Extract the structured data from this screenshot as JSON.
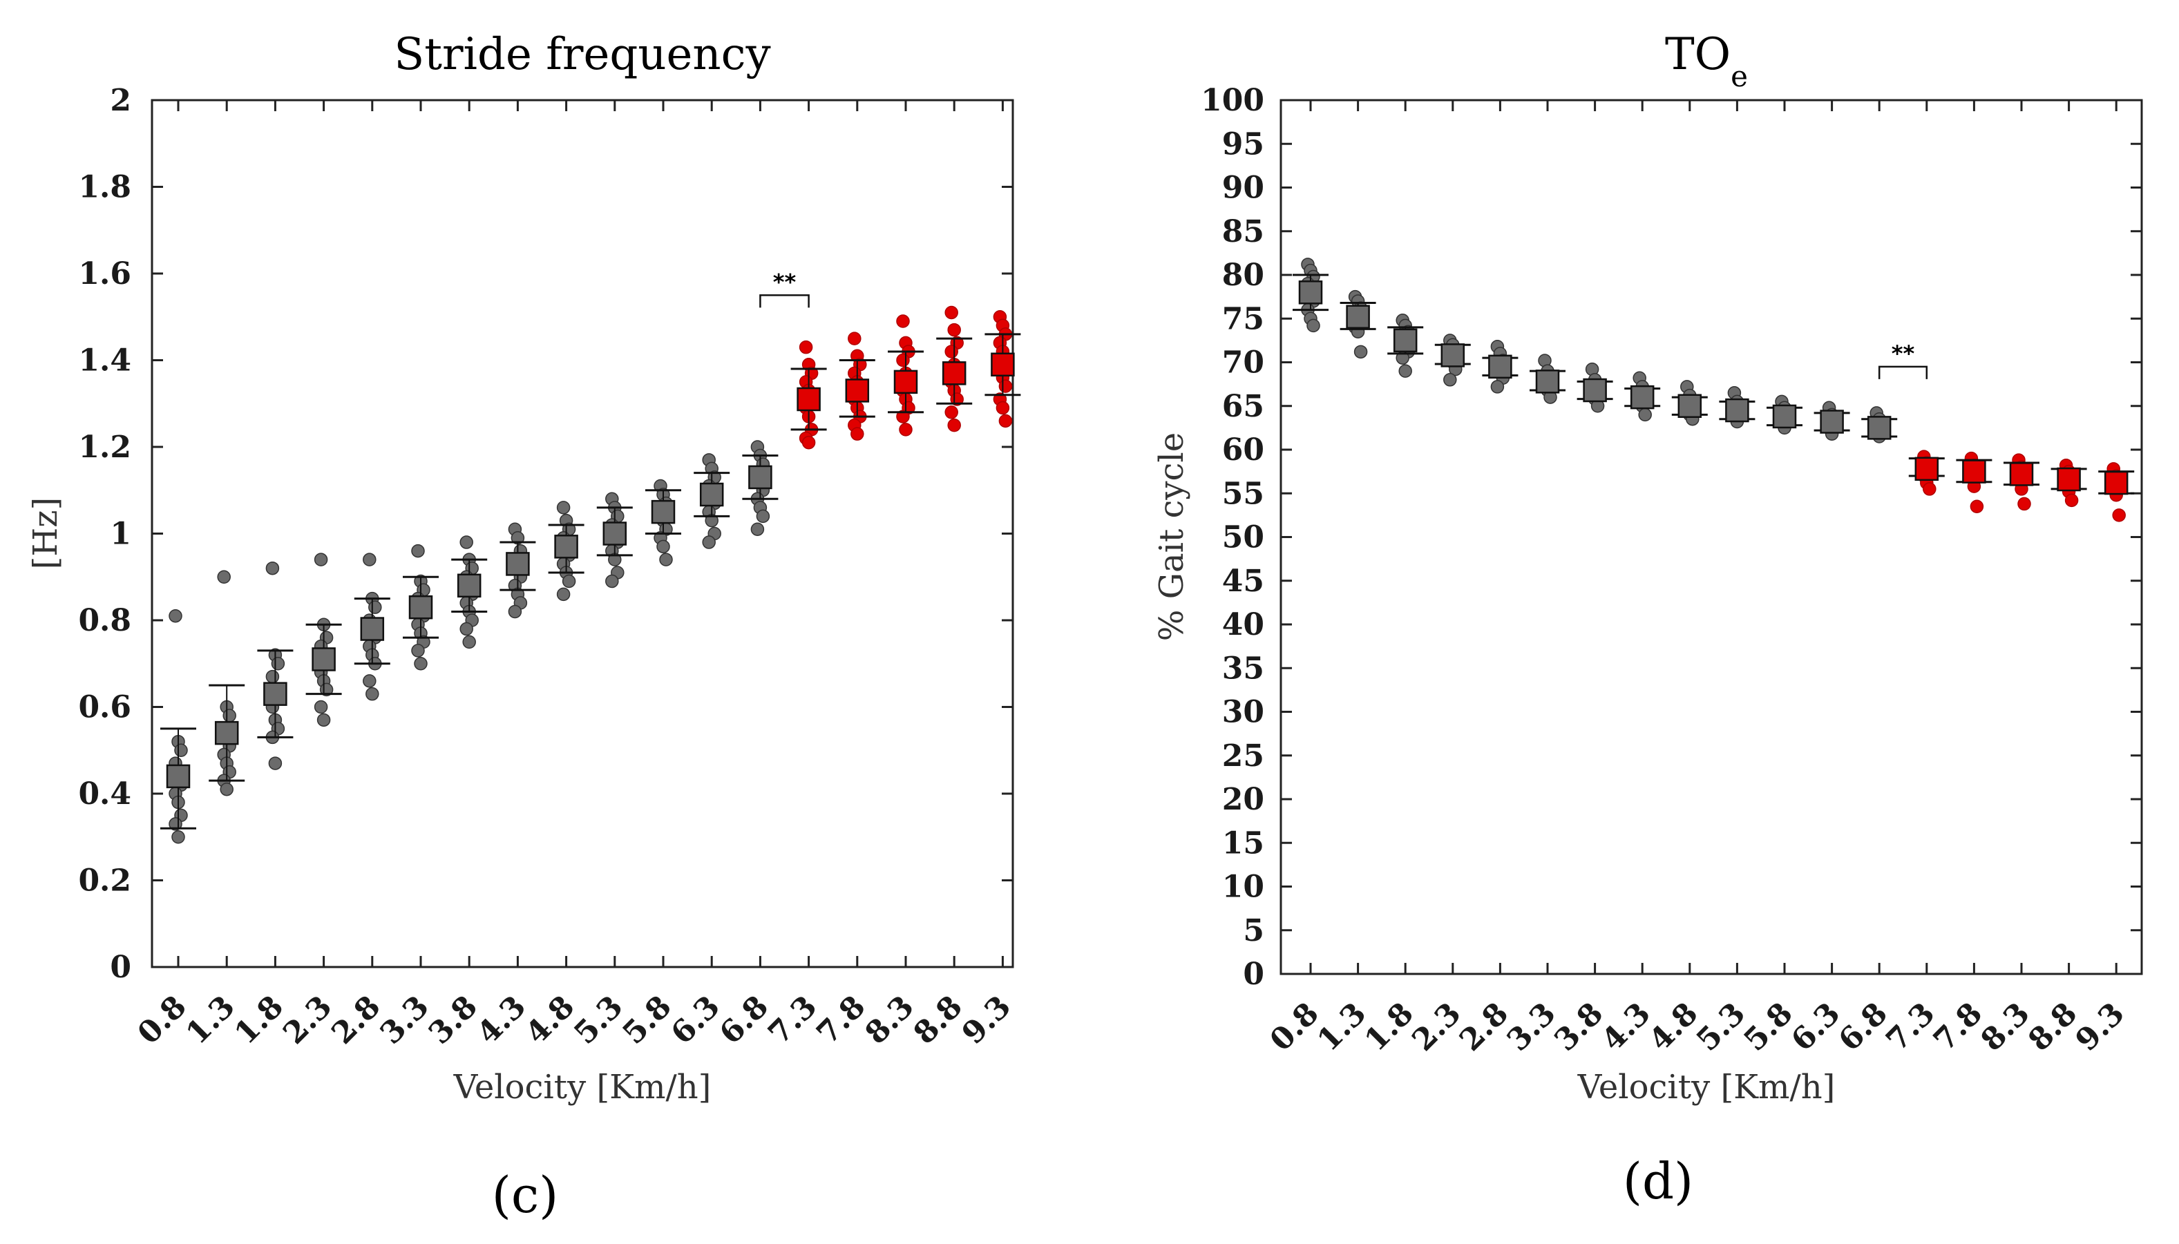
{
  "chart_data": [
    {
      "type": "scatter",
      "title": "Stride frequency",
      "title_subscript": "",
      "panel_label": "(c)",
      "xlabel": "Velocity [Km/h]",
      "ylabel": "[Hz]",
      "categories": [
        "0.8",
        "1.3",
        "1.8",
        "2.3",
        "2.8",
        "3.3",
        "3.8",
        "4.3",
        "4.8",
        "5.3",
        "5.8",
        "6.3",
        "6.8",
        "7.3",
        "7.8",
        "8.3",
        "8.8",
        "9.3"
      ],
      "ylim": [
        0,
        2
      ],
      "yticks": [
        0,
        0.2,
        0.4,
        0.6,
        0.8,
        1,
        1.2,
        1.4,
        1.6,
        1.8,
        2
      ],
      "ytick_labels": [
        "0",
        "0.2",
        "0.4",
        "0.6",
        "0.8",
        "1",
        "1.2",
        "1.4",
        "1.6",
        "1.8",
        "2"
      ],
      "means": [
        0.44,
        0.54,
        0.63,
        0.71,
        0.78,
        0.83,
        0.88,
        0.93,
        0.97,
        1.0,
        1.05,
        1.09,
        1.13,
        1.31,
        1.33,
        1.35,
        1.37,
        1.39
      ],
      "sd_upper": [
        0.55,
        0.65,
        0.73,
        0.79,
        0.85,
        0.9,
        0.94,
        0.98,
        1.02,
        1.06,
        1.1,
        1.14,
        1.18,
        1.38,
        1.4,
        1.42,
        1.45,
        1.46
      ],
      "sd_lower": [
        0.32,
        0.43,
        0.53,
        0.63,
        0.7,
        0.76,
        0.82,
        0.87,
        0.91,
        0.95,
        1.0,
        1.04,
        1.08,
        1.24,
        1.27,
        1.28,
        1.3,
        1.32
      ],
      "points": [
        [
          0.81,
          0.52,
          0.5,
          0.47,
          0.45,
          0.42,
          0.4,
          0.38,
          0.35,
          0.33,
          0.3
        ],
        [
          0.9,
          0.6,
          0.58,
          0.55,
          0.53,
          0.51,
          0.49,
          0.47,
          0.45,
          0.43,
          0.41
        ],
        [
          0.92,
          0.72,
          0.7,
          0.67,
          0.64,
          0.62,
          0.6,
          0.57,
          0.55,
          0.53,
          0.47
        ],
        [
          0.94,
          0.79,
          0.76,
          0.74,
          0.72,
          0.7,
          0.68,
          0.66,
          0.64,
          0.6,
          0.57
        ],
        [
          0.94,
          0.85,
          0.83,
          0.8,
          0.78,
          0.76,
          0.74,
          0.72,
          0.7,
          0.66,
          0.63
        ],
        [
          0.96,
          0.89,
          0.87,
          0.85,
          0.83,
          0.81,
          0.79,
          0.77,
          0.75,
          0.73,
          0.7
        ],
        [
          0.98,
          0.94,
          0.92,
          0.9,
          0.88,
          0.86,
          0.84,
          0.82,
          0.8,
          0.78,
          0.75
        ],
        [
          1.01,
          0.99,
          0.96,
          0.94,
          0.92,
          0.9,
          0.88,
          0.86,
          0.84,
          0.82
        ],
        [
          1.06,
          1.03,
          1.01,
          0.99,
          0.97,
          0.95,
          0.93,
          0.91,
          0.89,
          0.86
        ],
        [
          1.08,
          1.06,
          1.04,
          1.02,
          1.0,
          0.98,
          0.96,
          0.94,
          0.91,
          0.89
        ],
        [
          1.11,
          1.09,
          1.07,
          1.05,
          1.03,
          1.01,
          0.99,
          0.97,
          0.94
        ],
        [
          1.17,
          1.15,
          1.13,
          1.11,
          1.09,
          1.07,
          1.05,
          1.03,
          1.0,
          0.98
        ],
        [
          1.2,
          1.18,
          1.16,
          1.14,
          1.12,
          1.1,
          1.08,
          1.06,
          1.04,
          1.01
        ],
        [
          1.43,
          1.39,
          1.37,
          1.35,
          1.33,
          1.31,
          1.29,
          1.27,
          1.24,
          1.22,
          1.21
        ],
        [
          1.45,
          1.41,
          1.39,
          1.37,
          1.35,
          1.33,
          1.31,
          1.29,
          1.27,
          1.25,
          1.23
        ],
        [
          1.49,
          1.44,
          1.42,
          1.4,
          1.37,
          1.35,
          1.33,
          1.31,
          1.29,
          1.27,
          1.24
        ],
        [
          1.51,
          1.47,
          1.44,
          1.42,
          1.39,
          1.37,
          1.35,
          1.33,
          1.31,
          1.28,
          1.25
        ],
        [
          1.5,
          1.48,
          1.46,
          1.44,
          1.42,
          1.4,
          1.38,
          1.36,
          1.34,
          1.31,
          1.29,
          1.26
        ]
      ],
      "series_colors": {
        "normal": "#6b6b6b",
        "highlight": "#e00000",
        "highlight_from_index": 13
      },
      "significance": {
        "label": "**",
        "between": [
          "6.8",
          "7.3"
        ],
        "y": 1.55
      }
    },
    {
      "type": "scatter",
      "title": "TO",
      "title_subscript": "e",
      "panel_label": "(d)",
      "xlabel": "Velocity [Km/h]",
      "ylabel": "% Gait cycle",
      "categories": [
        "0.8",
        "1.3",
        "1.8",
        "2.3",
        "2.8",
        "3.3",
        "3.8",
        "4.3",
        "4.8",
        "5.3",
        "5.8",
        "6.3",
        "6.8",
        "7.3",
        "7.8",
        "8.3",
        "8.8",
        "9.3"
      ],
      "ylim": [
        0,
        100
      ],
      "yticks": [
        0,
        5,
        10,
        15,
        20,
        25,
        30,
        35,
        40,
        45,
        50,
        55,
        60,
        65,
        70,
        75,
        80,
        85,
        90,
        95,
        100
      ],
      "ytick_labels": [
        "0",
        "5",
        "10",
        "15",
        "20",
        "25",
        "30",
        "35",
        "40",
        "45",
        "50",
        "55",
        "60",
        "65",
        "70",
        "75",
        "80",
        "85",
        "90",
        "95",
        "100"
      ],
      "means": [
        78.0,
        75.2,
        72.5,
        70.8,
        69.5,
        67.8,
        66.8,
        66.0,
        65.0,
        64.5,
        63.8,
        63.2,
        62.5,
        57.8,
        57.5,
        57.2,
        56.6,
        56.2
      ],
      "sd_upper": [
        80.0,
        76.8,
        74.0,
        72.0,
        70.5,
        69.0,
        67.8,
        67.0,
        66.0,
        65.5,
        64.8,
        64.2,
        63.5,
        59.0,
        58.8,
        58.5,
        57.8,
        57.5
      ],
      "sd_lower": [
        76.0,
        73.8,
        71.0,
        69.8,
        68.5,
        66.8,
        65.8,
        65.0,
        64.0,
        63.5,
        62.8,
        62.2,
        61.5,
        57.0,
        56.3,
        56.0,
        55.5,
        55.0
      ],
      "points": [
        [
          81.2,
          80.5,
          79.8,
          79.0,
          78.0,
          77.0,
          76.0,
          75.0,
          74.2
        ],
        [
          77.5,
          77.0,
          76.2,
          75.5,
          75.0,
          74.5,
          74.0,
          73.5,
          71.2
        ],
        [
          74.8,
          74.2,
          73.5,
          72.8,
          72.0,
          71.2,
          70.5,
          69.0
        ],
        [
          72.5,
          72.0,
          71.2,
          70.5,
          70.0,
          69.2,
          68.0
        ],
        [
          71.8,
          71.0,
          70.2,
          69.5,
          69.0,
          68.2,
          67.2
        ],
        [
          70.2,
          69.0,
          68.2,
          67.5,
          66.8,
          66.0
        ],
        [
          69.2,
          68.0,
          67.2,
          66.5,
          65.8,
          65.0
        ],
        [
          68.2,
          67.2,
          66.5,
          65.8,
          65.0,
          64.0
        ],
        [
          67.2,
          66.2,
          65.5,
          64.8,
          64.0,
          63.5
        ],
        [
          66.5,
          65.5,
          64.8,
          64.0,
          63.2
        ],
        [
          65.5,
          64.8,
          64.0,
          63.2,
          62.5
        ],
        [
          64.8,
          64.0,
          63.2,
          62.5,
          61.8
        ],
        [
          64.2,
          63.5,
          62.8,
          62.0,
          61.5
        ],
        [
          59.2,
          58.5,
          57.8,
          57.0,
          56.2,
          55.5
        ],
        [
          59.0,
          58.2,
          57.5,
          56.8,
          55.8,
          53.5
        ],
        [
          58.8,
          58.0,
          57.2,
          56.5,
          55.5,
          53.8
        ],
        [
          58.2,
          57.5,
          56.8,
          56.0,
          55.2,
          54.2
        ],
        [
          57.8,
          57.0,
          56.2,
          55.5,
          54.8,
          52.5
        ]
      ],
      "series_colors": {
        "normal": "#6b6b6b",
        "highlight": "#e00000",
        "highlight_from_index": 13
      },
      "significance": {
        "label": "**",
        "between": [
          "6.8",
          "7.3"
        ],
        "y": 69.5
      }
    }
  ]
}
